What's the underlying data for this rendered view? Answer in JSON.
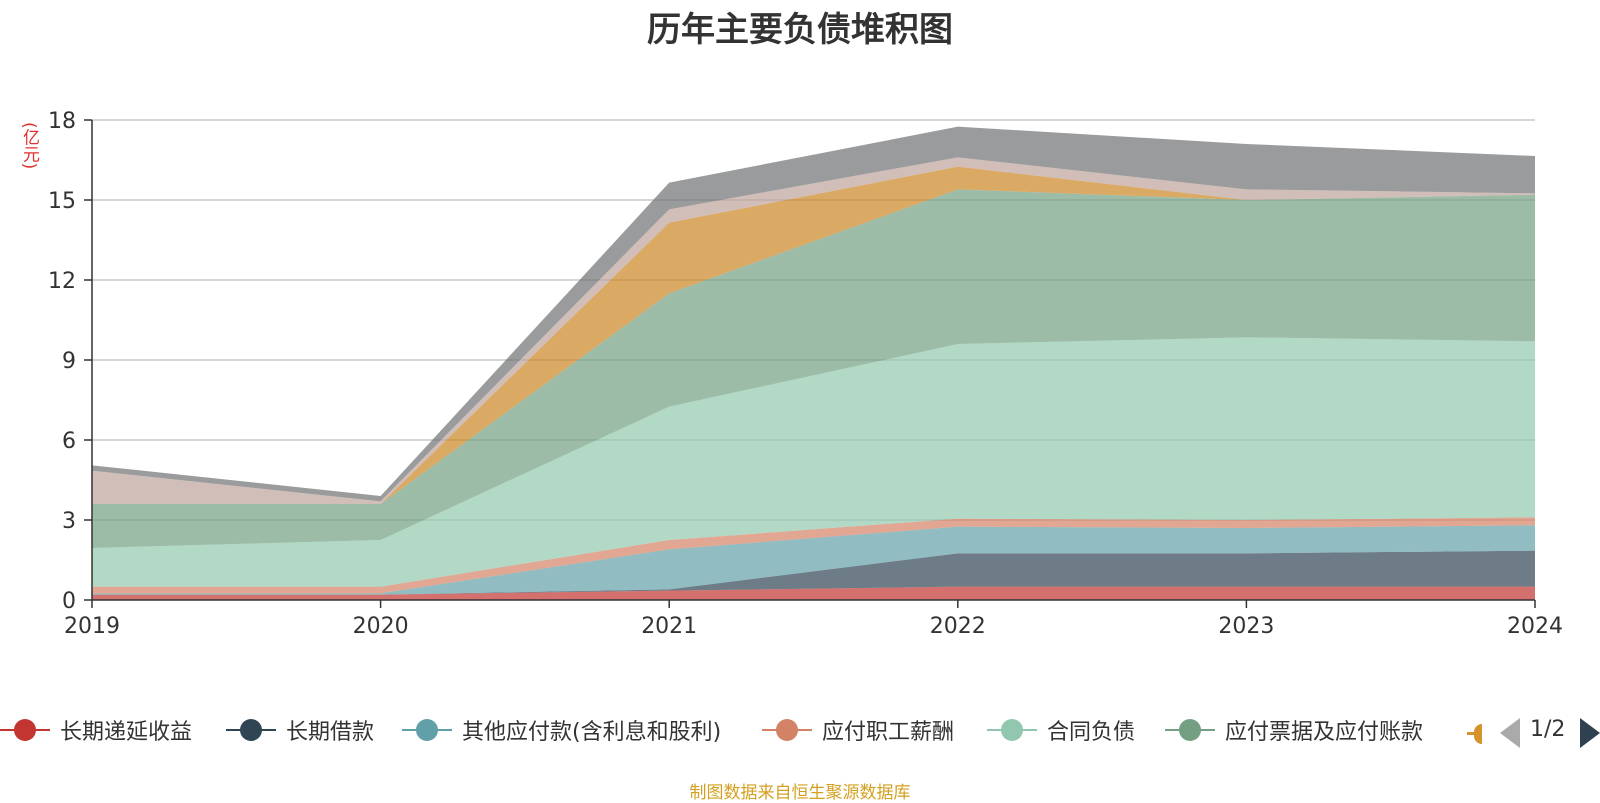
{
  "chart_data": {
    "type": "area",
    "stacked": true,
    "title": "历年主要负债堆积图",
    "ylabel": "(亿元)",
    "xlabel": "",
    "x": [
      "2019",
      "2020",
      "2021",
      "2022",
      "2023",
      "2024"
    ],
    "ylim": [
      0,
      18
    ],
    "yticks": [
      "0",
      "3",
      "6",
      "9",
      "12",
      "15",
      "18"
    ],
    "grid": true,
    "legend_position": "bottom",
    "series": [
      {
        "name": "长期递延收益",
        "color": "#c23531",
        "values": [
          0.2,
          0.2,
          0.35,
          0.5,
          0.5,
          0.5
        ]
      },
      {
        "name": "长期借款",
        "color": "#2f4554",
        "values": [
          0.0,
          0.0,
          0.05,
          1.25,
          1.25,
          1.35
        ]
      },
      {
        "name": "其他应付款(含利息和股利)",
        "color": "#61a0a8",
        "values": [
          0.05,
          0.05,
          1.5,
          1.0,
          0.95,
          0.95
        ]
      },
      {
        "name": "应付职工薪酬",
        "color": "#d48265",
        "values": [
          0.25,
          0.25,
          0.35,
          0.3,
          0.3,
          0.3
        ]
      },
      {
        "name": "合同负债",
        "color": "#91c7ae",
        "values": [
          1.45,
          1.75,
          5.0,
          6.55,
          6.85,
          6.6
        ]
      },
      {
        "name": "应付票据及应付账款",
        "color": "#749f83",
        "values": [
          1.65,
          1.35,
          4.25,
          5.8,
          5.15,
          5.5
        ]
      },
      {
        "name": "",
        "color": "#ca8622",
        "values": [
          0.0,
          0.0,
          2.65,
          0.85,
          0.0,
          0.0
        ]
      },
      {
        "name": "",
        "color": "#bda29a",
        "values": [
          1.25,
          0.1,
          0.5,
          0.35,
          0.4,
          0.05
        ]
      },
      {
        "name": "",
        "color": "#6e7074",
        "values": [
          0.2,
          0.2,
          1.0,
          1.15,
          1.7,
          1.4
        ]
      }
    ],
    "legend_visible": [
      "长期递延收益",
      "长期借款",
      "其他应付款(含利息和股利)",
      "应付职工薪酬",
      "合同负债",
      "应付票据及应付账款"
    ]
  },
  "legend_pager": {
    "text": "1/2"
  },
  "footer": {
    "source": "制图数据来自恒生聚源数据库"
  }
}
